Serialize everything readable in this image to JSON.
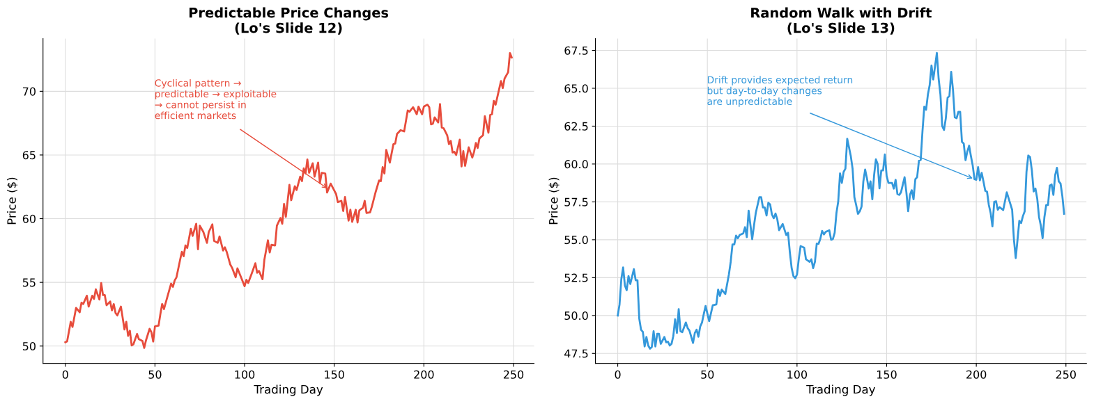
{
  "chart_data": [
    {
      "type": "line",
      "title": "Predictable Price Changes\n(Lo's Slide 12)",
      "xlabel": "Trading Day",
      "ylabel": "Price ($)",
      "xlim": [
        -12.45,
        261.45
      ],
      "ylim": [
        48.64,
        74.14
      ],
      "xticks": [
        0,
        50,
        100,
        150,
        200,
        250
      ],
      "yticks": [
        50,
        55,
        60,
        65,
        70
      ],
      "grid": true,
      "marker": "none",
      "line_style": "solid",
      "annotations": [
        {
          "text": "Cyclical pattern →\npredictable → exploitable\n→ cannot persist in\nefficient markets",
          "x": 147,
          "y": 62.3
        }
      ],
      "series": [
        {
          "color": "#e74c3c",
          "x": [
            0,
            1,
            3,
            4,
            6,
            8,
            9,
            10,
            12,
            13,
            15,
            16,
            17,
            19,
            20,
            21,
            22,
            23,
            25,
            26,
            27,
            28,
            29,
            31,
            33,
            34,
            35,
            36,
            37,
            38,
            40,
            41,
            43,
            44,
            45,
            47,
            48,
            49,
            50,
            52,
            53,
            54,
            55,
            59,
            60,
            61,
            62,
            64,
            65,
            66,
            67,
            68,
            70,
            71,
            73,
            74,
            75,
            77,
            79,
            80,
            82,
            83,
            85,
            86,
            88,
            89,
            90,
            92,
            93,
            95,
            96,
            98,
            100,
            101,
            102,
            104,
            106,
            107,
            108,
            110,
            111,
            113,
            114,
            115,
            117,
            118,
            120,
            121,
            122,
            123,
            125,
            126,
            128,
            129,
            131,
            132,
            133,
            134,
            135,
            136,
            138,
            139,
            141,
            142,
            143,
            145,
            146,
            148,
            151,
            152,
            154,
            155,
            156,
            158,
            159,
            160,
            162,
            163,
            164,
            166,
            167,
            168,
            170,
            171,
            173,
            175,
            176,
            177,
            178,
            179,
            181,
            183,
            184,
            185,
            187,
            189,
            191,
            192,
            194,
            196,
            197,
            199,
            200,
            202,
            203,
            204,
            205,
            206,
            208,
            209,
            210,
            211,
            213,
            214,
            215,
            216,
            217,
            218,
            220,
            221,
            222,
            223,
            225,
            227,
            228,
            229,
            230,
            231,
            233,
            234,
            236,
            237,
            238,
            239,
            240,
            243,
            244,
            245,
            247,
            248,
            249
          ],
          "values": [
            50.3,
            50.37,
            51.9,
            51.5,
            53.0,
            52.65,
            53.4,
            53.3,
            53.95,
            53.1,
            53.95,
            53.7,
            54.45,
            53.65,
            54.95,
            54.0,
            54.0,
            53.2,
            53.5,
            52.8,
            53.3,
            52.6,
            52.4,
            53.1,
            51.3,
            51.9,
            50.8,
            51.2,
            50.05,
            50.15,
            50.95,
            50.55,
            50.4,
            49.85,
            50.45,
            51.35,
            51.1,
            50.35,
            51.55,
            51.6,
            52.5,
            53.3,
            52.9,
            54.9,
            54.65,
            55.15,
            55.4,
            56.75,
            57.4,
            57.05,
            57.9,
            57.7,
            59.2,
            58.65,
            59.6,
            57.6,
            59.45,
            58.95,
            58.1,
            58.95,
            59.55,
            58.25,
            58.1,
            58.6,
            57.5,
            57.75,
            57.4,
            56.4,
            56.15,
            55.4,
            56.1,
            55.4,
            54.7,
            55.2,
            54.95,
            55.7,
            56.5,
            55.75,
            55.9,
            55.25,
            56.75,
            58.3,
            57.35,
            57.95,
            57.9,
            59.45,
            60.05,
            59.6,
            61.15,
            60.15,
            62.65,
            61.45,
            62.55,
            62.25,
            63.3,
            62.95,
            63.95,
            63.55,
            64.65,
            63.6,
            64.35,
            63.3,
            64.4,
            62.8,
            63.6,
            63.55,
            62.05,
            62.75,
            61.95,
            61.3,
            61.4,
            60.6,
            61.7,
            59.85,
            60.7,
            59.75,
            60.7,
            59.7,
            60.65,
            60.85,
            61.4,
            60.45,
            60.5,
            60.95,
            62.05,
            63.0,
            62.95,
            64.05,
            63.55,
            65.4,
            64.4,
            65.85,
            65.9,
            66.65,
            66.95,
            66.85,
            68.5,
            68.4,
            68.75,
            68.2,
            68.8,
            68.2,
            68.8,
            68.95,
            68.75,
            67.4,
            67.45,
            67.95,
            67.55,
            69.0,
            67.15,
            67.1,
            66.55,
            65.85,
            66.1,
            65.2,
            65.25,
            65.0,
            66.2,
            64.1,
            65.3,
            64.15,
            65.6,
            64.8,
            65.25,
            65.95,
            65.55,
            66.3,
            66.55,
            68.05,
            66.75,
            68.15,
            68.2,
            69.25,
            68.95,
            70.8,
            70.25,
            71.0,
            71.5,
            73.0,
            72.65
          ]
        }
      ]
    },
    {
      "type": "line",
      "title": "Random Walk with Drift\n(Lo's Slide 13)",
      "xlabel": "Trading Day",
      "ylabel": "Price ($)",
      "xlim": [
        -12.45,
        261.45
      ],
      "ylim": [
        46.84,
        68.28
      ],
      "xticks": [
        0,
        50,
        100,
        150,
        200,
        250
      ],
      "yticks": [
        {
          "value": 47.5,
          "label": "47.5"
        },
        {
          "value": 50,
          "label": "50.0"
        },
        {
          "value": 52.5,
          "label": "52.5"
        },
        {
          "value": 55,
          "label": "55.0"
        },
        {
          "value": 57.5,
          "label": "57.5"
        },
        {
          "value": 60,
          "label": "60.0"
        },
        {
          "value": 62.5,
          "label": "62.5"
        },
        {
          "value": 65,
          "label": "65.0"
        },
        {
          "value": 67.5,
          "label": "67.5"
        }
      ],
      "grid": true,
      "marker": "none",
      "line_style": "solid",
      "annotations": [
        {
          "text": "Drift provides expected return\nbut day-to-day changes\nare unpredictable",
          "x": 199,
          "y": 59.0
        }
      ],
      "series": [
        {
          "color": "#3498db",
          "x": [
            0,
            1,
            2,
            3,
            4,
            5,
            6,
            7,
            9,
            10,
            11,
            12,
            13,
            14,
            15,
            16,
            17,
            18,
            19,
            20,
            21,
            22,
            23,
            24,
            26,
            27,
            28,
            29,
            30,
            31,
            32,
            33,
            34,
            35,
            36,
            38,
            39,
            40,
            42,
            43,
            44,
            45,
            46,
            47,
            48,
            49,
            51,
            53,
            55,
            56,
            57,
            58,
            60,
            62,
            63,
            64,
            65,
            66,
            67,
            68,
            70,
            71,
            72,
            73,
            75,
            76,
            77,
            79,
            80,
            81,
            82,
            83,
            84,
            85,
            86,
            87,
            88,
            89,
            90,
            92,
            94,
            95,
            96,
            97,
            98,
            99,
            100,
            101,
            102,
            104,
            105,
            107,
            108,
            109,
            110,
            111,
            112,
            113,
            114,
            115,
            116,
            118,
            119,
            120,
            121,
            122,
            123,
            124,
            125,
            126,
            127,
            128,
            130,
            131,
            132,
            133,
            134,
            135,
            136,
            137,
            138,
            139,
            140,
            141,
            142,
            143,
            144,
            145,
            146,
            147,
            148,
            149,
            150,
            151,
            152,
            153,
            154,
            155,
            156,
            157,
            158,
            160,
            161,
            162,
            163,
            164,
            165,
            166,
            167,
            168,
            169,
            170,
            171,
            172,
            173,
            174,
            175,
            176,
            177,
            178,
            179,
            180,
            181,
            182,
            183,
            184,
            185,
            186,
            187,
            188,
            189,
            190,
            191,
            192,
            193,
            194,
            195,
            196,
            197,
            198,
            199,
            200,
            201,
            202,
            203,
            204,
            205,
            206,
            207,
            208,
            209,
            210,
            211,
            212,
            213,
            215,
            217,
            220,
            221,
            222,
            223,
            224,
            225,
            226,
            227,
            228,
            229,
            230,
            231,
            232,
            233,
            234,
            235,
            236,
            237,
            238,
            239,
            240,
            241,
            242,
            243,
            244,
            245,
            246,
            247,
            248,
            249
          ],
          "values": [
            50.0,
            50.73,
            52.4,
            53.17,
            51.98,
            51.67,
            52.6,
            52.08,
            53.06,
            52.33,
            52.33,
            49.8,
            49.06,
            48.92,
            47.96,
            48.58,
            48.02,
            47.81,
            47.92,
            48.96,
            47.96,
            48.79,
            48.79,
            48.13,
            48.58,
            48.23,
            48.27,
            48.02,
            48.13,
            48.65,
            49.75,
            48.85,
            50.42,
            48.96,
            48.9,
            49.54,
            49.17,
            49.0,
            48.19,
            48.85,
            49.06,
            48.6,
            49.27,
            49.54,
            50.1,
            50.63,
            49.63,
            50.67,
            50.73,
            51.71,
            51.29,
            51.71,
            51.42,
            52.71,
            53.54,
            54.69,
            54.69,
            55.27,
            55.1,
            55.31,
            55.42,
            55.83,
            55.17,
            56.92,
            55.04,
            55.94,
            56.77,
            57.81,
            57.81,
            57.13,
            57.13,
            56.6,
            57.44,
            57.33,
            56.67,
            56.42,
            56.73,
            56.35,
            55.63,
            56.04,
            55.31,
            55.46,
            54.17,
            53.13,
            52.6,
            52.46,
            52.71,
            53.75,
            54.58,
            54.48,
            53.71,
            53.54,
            53.71,
            53.13,
            53.54,
            54.75,
            54.73,
            55.06,
            55.58,
            55.35,
            55.52,
            55.63,
            55.0,
            55.04,
            55.46,
            56.77,
            57.54,
            59.38,
            58.75,
            59.48,
            59.69,
            61.67,
            60.52,
            59.69,
            57.81,
            57.29,
            56.71,
            56.88,
            57.19,
            58.85,
            59.63,
            59.06,
            58.38,
            58.85,
            57.67,
            59.27,
            60.31,
            60.0,
            58.4,
            59.58,
            59.58,
            60.63,
            59.21,
            58.75,
            58.75,
            58.75,
            58.38,
            58.96,
            58.02,
            57.96,
            58.13,
            59.13,
            58.13,
            56.88,
            57.96,
            58.27,
            57.67,
            59.0,
            59.13,
            60.21,
            60.27,
            62.19,
            63.79,
            63.58,
            64.58,
            65.21,
            66.5,
            65.58,
            66.46,
            67.33,
            65.63,
            64.58,
            62.5,
            62.25,
            63.02,
            64.38,
            64.48,
            66.08,
            64.9,
            63.08,
            63.02,
            63.44,
            63.44,
            61.46,
            61.35,
            60.25,
            60.83,
            61.21,
            60.52,
            59.9,
            59.0,
            58.96,
            59.79,
            58.92,
            59.42,
            58.85,
            58.23,
            58.17,
            57.29,
            56.77,
            55.88,
            57.5,
            57.54,
            56.98,
            57.15,
            56.96,
            58.13,
            56.98,
            55.0,
            53.79,
            55.0,
            56.25,
            56.1,
            56.56,
            56.88,
            59.48,
            60.56,
            60.46,
            59.58,
            58.19,
            58.38,
            57.71,
            56.5,
            55.94,
            55.1,
            56.5,
            57.29,
            57.29,
            58.58,
            58.65,
            57.96,
            59.27,
            59.75,
            58.85,
            58.71,
            57.88,
            56.71
          ]
        }
      ]
    }
  ]
}
